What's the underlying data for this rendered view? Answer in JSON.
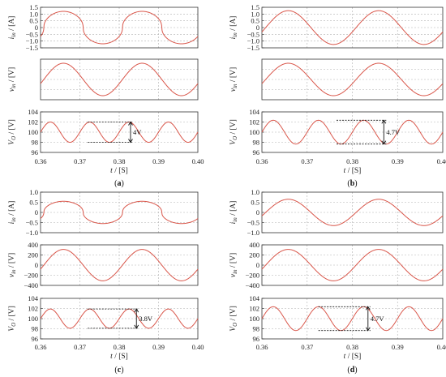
{
  "chart_data": [
    {
      "caption": "(a)",
      "type": "line",
      "xlabel": "t / [S]",
      "x_ticks": [
        "0.36",
        "0.37",
        "0.38",
        "0.39",
        "0.40"
      ],
      "xlim": [
        0.36,
        0.4
      ],
      "subplots": [
        {
          "ylabel": "i_in / [A]",
          "ylim": [
            -1.5,
            1.5
          ],
          "y_ticks": [
            "1.5",
            "1.0",
            "0.5",
            "0",
            "−0.5",
            "−1.0",
            "−1.5"
          ],
          "y_tick_values": [
            1.5,
            1.0,
            0.5,
            0,
            -0.5,
            -1.0,
            -1.5
          ],
          "series": [
            {
              "shape": "flattened-sine",
              "frequency_hz": 50,
              "amplitude": 1.2,
              "phase_deg": -15
            }
          ]
        },
        {
          "ylabel": "v_in / [V]",
          "ylim": [
            -200,
            200
          ],
          "y_ticks": [],
          "y_tick_values": [],
          "series": [
            {
              "shape": "sine",
              "frequency_hz": 50,
              "amplitude": 160,
              "phase_deg": -15
            }
          ]
        },
        {
          "ylabel": "V_O / [V]",
          "ylim": [
            96,
            104
          ],
          "y_ticks": [
            "104",
            "102",
            "100",
            "98",
            "96"
          ],
          "y_tick_values": [
            104,
            102,
            100,
            98,
            96
          ],
          "series": [
            {
              "shape": "ripple",
              "frequency_hz": 100,
              "offset": 100,
              "amplitude": 2.0,
              "phase_deg": 0
            }
          ],
          "annotation": {
            "label": "4V",
            "x_start": 0.372,
            "x_end": 0.3835,
            "top": 102.0,
            "bottom": 98.0
          }
        }
      ]
    },
    {
      "caption": "(b)",
      "type": "line",
      "xlabel": "t / [S]",
      "x_ticks": [
        "0.36",
        "0.37",
        "0.38",
        "0.39",
        "0.40"
      ],
      "xlim": [
        0.36,
        0.4
      ],
      "subplots": [
        {
          "ylabel": "i_in / [A]",
          "ylim": [
            -1.5,
            1.5
          ],
          "y_ticks": [
            "1.5",
            "1.0",
            "0.5",
            "0",
            "−0.5",
            "−1.0",
            "−1.5"
          ],
          "y_tick_values": [
            1.5,
            1.0,
            0.5,
            0,
            -0.5,
            -1.0,
            -1.5
          ],
          "series": [
            {
              "shape": "sine",
              "frequency_hz": 50,
              "amplitude": 1.25,
              "phase_deg": -15
            }
          ]
        },
        {
          "ylabel": "v_in / [V]",
          "ylim": [
            -200,
            200
          ],
          "y_ticks": [],
          "y_tick_values": [],
          "series": [
            {
              "shape": "sine",
              "frequency_hz": 50,
              "amplitude": 160,
              "phase_deg": -15
            }
          ]
        },
        {
          "ylabel": "V_O / [V]",
          "ylim": [
            96,
            104
          ],
          "y_ticks": [
            "104",
            "102",
            "100",
            "98",
            "96"
          ],
          "y_tick_values": [
            104,
            102,
            100,
            98,
            96
          ],
          "series": [
            {
              "shape": "ripple",
              "frequency_hz": 100,
              "offset": 100,
              "amplitude": 2.35,
              "phase_deg": 0
            }
          ],
          "annotation": {
            "label": "4.7V",
            "x_start": 0.3765,
            "x_end": 0.3875,
            "top": 102.35,
            "bottom": 97.65
          }
        }
      ]
    },
    {
      "caption": "(c)",
      "type": "line",
      "xlabel": "t / [S]",
      "x_ticks": [
        "0.36",
        "0.37",
        "0.38",
        "0.39",
        "0.40"
      ],
      "xlim": [
        0.36,
        0.4
      ],
      "subplots": [
        {
          "ylabel": "i_in / [A]",
          "ylim": [
            -1.0,
            1.0
          ],
          "y_ticks": [
            "1.0",
            "0.5",
            "0",
            "−0.5",
            "−1.0"
          ],
          "y_tick_values": [
            1.0,
            0.5,
            0,
            -0.5,
            -1.0
          ],
          "series": [
            {
              "shape": "flattened-sine",
              "frequency_hz": 50,
              "amplitude": 0.55,
              "phase_deg": -15
            }
          ]
        },
        {
          "ylabel": "v_in / [V]",
          "ylim": [
            -400,
            400
          ],
          "y_ticks": [
            "400",
            "200",
            "0",
            "−200",
            "−400"
          ],
          "y_tick_values": [
            400,
            200,
            0,
            -200,
            -400
          ],
          "series": [
            {
              "shape": "sine",
              "frequency_hz": 50,
              "amplitude": 310,
              "phase_deg": -15
            }
          ]
        },
        {
          "ylabel": "V_O / [V]",
          "ylim": [
            96,
            104
          ],
          "y_ticks": [
            "104",
            "102",
            "100",
            "98",
            "96"
          ],
          "y_tick_values": [
            104,
            102,
            100,
            98,
            96
          ],
          "series": [
            {
              "shape": "ripple",
              "frequency_hz": 100,
              "offset": 100,
              "amplitude": 1.9,
              "phase_deg": 0
            }
          ],
          "annotation": {
            "label": "3.8V",
            "x_start": 0.372,
            "x_end": 0.385,
            "top": 101.9,
            "bottom": 98.1
          }
        }
      ]
    },
    {
      "caption": "(d)",
      "type": "line",
      "xlabel": "t / [S]",
      "x_ticks": [
        "0.36",
        "0.37",
        "0.38",
        "0.39",
        "0.40"
      ],
      "xlim": [
        0.36,
        0.4
      ],
      "subplots": [
        {
          "ylabel": "i_in / [A]",
          "ylim": [
            -1.0,
            1.0
          ],
          "y_ticks": [
            "1.0",
            "0.5",
            "0",
            "−0.5",
            "−1.0"
          ],
          "y_tick_values": [
            1.0,
            0.5,
            0,
            -0.5,
            -1.0
          ],
          "series": [
            {
              "shape": "sine",
              "frequency_hz": 50,
              "amplitude": 0.65,
              "phase_deg": -15
            }
          ]
        },
        {
          "ylabel": "v_in / [V]",
          "ylim": [
            -400,
            400
          ],
          "y_ticks": [
            "400",
            "200",
            "0",
            "−200",
            "−400"
          ],
          "y_tick_values": [
            400,
            200,
            0,
            -200,
            -400
          ],
          "series": [
            {
              "shape": "sine",
              "frequency_hz": 50,
              "amplitude": 310,
              "phase_deg": -15
            }
          ]
        },
        {
          "ylabel": "V_O / [V]",
          "ylim": [
            96,
            104
          ],
          "y_ticks": [
            "104",
            "102",
            "100",
            "98",
            "96"
          ],
          "y_tick_values": [
            104,
            102,
            100,
            98,
            96
          ],
          "series": [
            {
              "shape": "ripple",
              "frequency_hz": 100,
              "offset": 100,
              "amplitude": 2.35,
              "phase_deg": 0
            }
          ],
          "annotation": {
            "label": "4.7V",
            "x_start": 0.3725,
            "x_end": 0.384,
            "top": 102.35,
            "bottom": 97.65
          }
        }
      ]
    }
  ],
  "colors": {
    "trace": "#d9564a",
    "axis": "#333333",
    "grid": "#b0b0b0",
    "annotation": "#111111"
  }
}
